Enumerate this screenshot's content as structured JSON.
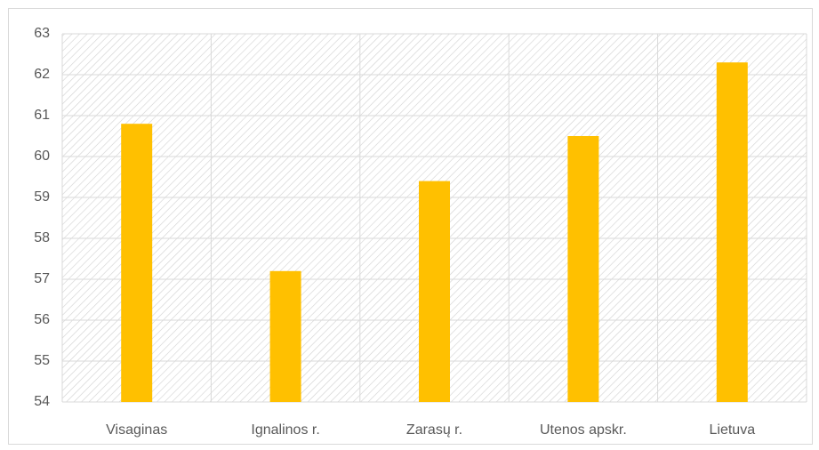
{
  "chart_data": {
    "type": "bar",
    "categories": [
      "Visaginas",
      "Ignalinos r.",
      "Zarasų r.",
      "Utenos apskr.",
      "Lietuva"
    ],
    "values": [
      60.8,
      57.2,
      59.4,
      60.5,
      62.3
    ],
    "color": "#ffc000",
    "ylim": [
      54,
      63
    ],
    "yticks": [
      54,
      55,
      56,
      57,
      58,
      59,
      60,
      61,
      62,
      63
    ],
    "grid": true
  }
}
